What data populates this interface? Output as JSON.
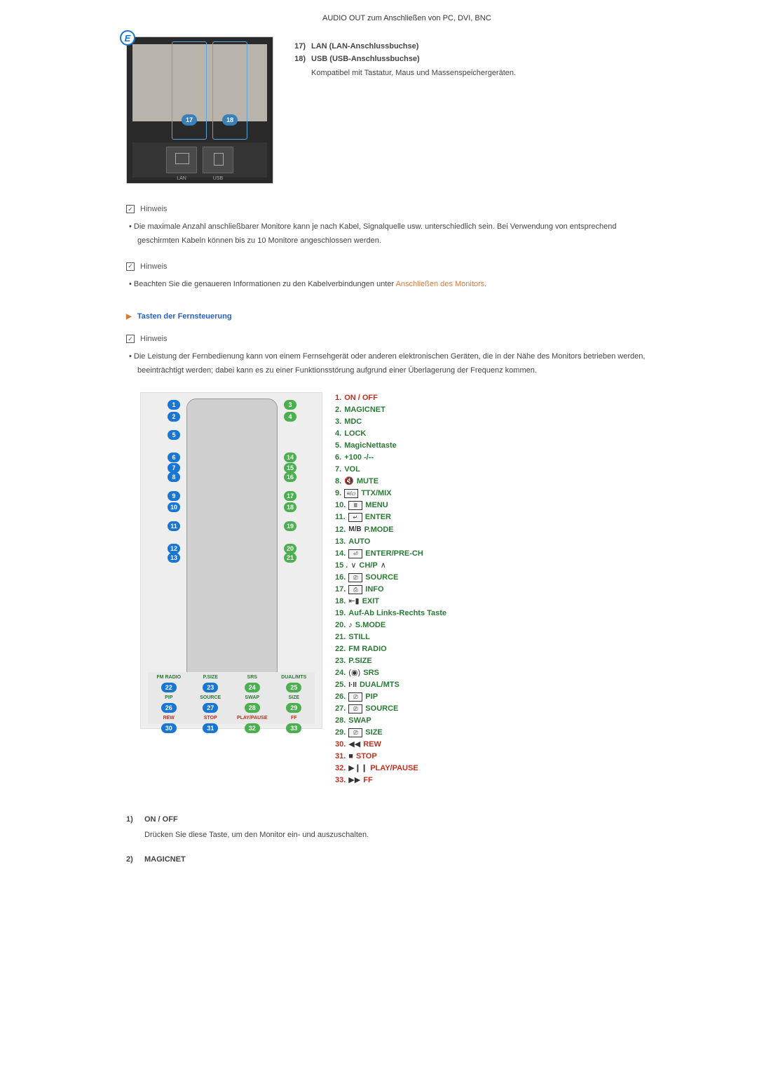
{
  "top": {
    "audio_out": "AUDIO OUT zum Anschließen von PC, DVI, BNC"
  },
  "ports": {
    "e_badge": "E",
    "items": [
      {
        "num": "17)",
        "title": "LAN (LAN-Anschlussbuchse)",
        "desc": ""
      },
      {
        "num": "18)",
        "title": "USB (USB-Anschlussbuchse)",
        "desc": "Kompatibel mit Tastatur, Maus und Massenspeichergeräten."
      }
    ],
    "labels": {
      "lan": "LAN",
      "usb": "USB",
      "n17": "17",
      "n18": "18"
    }
  },
  "notes": {
    "label": "Hinweis",
    "n1": "Die maximale Anzahl anschließbarer Monitore kann je nach Kabel, Signalquelle usw. unterschiedlich sein. Bei Verwendung von entsprechend geschirmten Kabeln können bis zu 10 Monitore angeschlossen werden.",
    "n2_pre": "Beachten Sie die genaueren Informationen zu den Kabelverbindungen unter ",
    "n2_link": "Anschließen des Monitors",
    "n2_post": ".",
    "n3": "Die Leistung der Fernbedienung kann von einem Fernsehgerät oder anderen elektronischen Geräten, die in der Nähe des Monitors betrieben werden, beeinträchtigt werden; dabei kann es zu einer Funktionsstörung aufgrund einer Überlagerung der Frequenz kommen."
  },
  "section": {
    "title": "Tasten der Fernsteuerung"
  },
  "remote_callouts": {
    "left": [
      {
        "n": "1",
        "t": 10
      },
      {
        "n": "2",
        "t": 27
      },
      {
        "n": "5",
        "t": 53
      },
      {
        "n": "6",
        "t": 85
      },
      {
        "n": "7",
        "t": 100
      },
      {
        "n": "8",
        "t": 113
      },
      {
        "n": "9",
        "t": 140
      },
      {
        "n": "10",
        "t": 156
      },
      {
        "n": "11",
        "t": 183
      },
      {
        "n": "12",
        "t": 215
      },
      {
        "n": "13",
        "t": 228
      }
    ],
    "right": [
      {
        "n": "3",
        "t": 10
      },
      {
        "n": "4",
        "t": 27
      },
      {
        "n": "14",
        "t": 85
      },
      {
        "n": "15",
        "t": 100
      },
      {
        "n": "16",
        "t": 113
      },
      {
        "n": "17",
        "t": 140
      },
      {
        "n": "18",
        "t": 156
      },
      {
        "n": "19",
        "t": 183
      },
      {
        "n": "20",
        "t": 215
      },
      {
        "n": "21",
        "t": 228
      }
    ]
  },
  "footer": {
    "row1_labels": [
      "FM RADIO",
      "P.SIZE",
      "SRS",
      "DUAL/MTS"
    ],
    "row1_nums": [
      {
        "n": "22",
        "c": "blue"
      },
      {
        "n": "23",
        "c": "blue"
      },
      {
        "n": "24",
        "c": "green"
      },
      {
        "n": "25",
        "c": "green"
      }
    ],
    "row2_labels": [
      "PIP",
      "SOURCE",
      "SWAP",
      "SIZE"
    ],
    "row2_nums": [
      {
        "n": "26",
        "c": "blue"
      },
      {
        "n": "27",
        "c": "blue"
      },
      {
        "n": "28",
        "c": "green"
      },
      {
        "n": "29",
        "c": "green"
      }
    ],
    "row3_labels": [
      "REW",
      "STOP",
      "PLAY/PAUSE",
      "FF"
    ],
    "row3_nums": [
      {
        "n": "30",
        "c": "blue"
      },
      {
        "n": "31",
        "c": "blue"
      },
      {
        "n": "32",
        "c": "green"
      },
      {
        "n": "33",
        "c": "green"
      }
    ]
  },
  "remote_list": [
    {
      "n": "1.",
      "label": "ON / OFF",
      "red": true
    },
    {
      "n": "2.",
      "label": "MAGICNET"
    },
    {
      "n": "3.",
      "label": "MDC"
    },
    {
      "n": "4.",
      "label": "LOCK"
    },
    {
      "n": "5.",
      "label": "MagicNettaste"
    },
    {
      "n": "6.",
      "label": "+100 -/--"
    },
    {
      "n": "7.",
      "label": "VOL"
    },
    {
      "n": "8.",
      "label": "MUTE",
      "icon_text": "🔇"
    },
    {
      "n": "9.",
      "label": "TTX/MIX",
      "box": "≡/▱"
    },
    {
      "n": "10.",
      "label": "MENU",
      "box": "Ⅲ"
    },
    {
      "n": "11.",
      "label": "ENTER",
      "box": "↵"
    },
    {
      "n": "12.",
      "label": "P.MODE",
      "plain": "M/B"
    },
    {
      "n": "13.",
      "label": "AUTO"
    },
    {
      "n": "14.",
      "label": "ENTER/PRE-CH",
      "box": "⏎"
    },
    {
      "n": "15 .",
      "label": "CH/P",
      "pre": "∨",
      "post": "∧"
    },
    {
      "n": "16.",
      "label": "SOURCE",
      "box": "⎚"
    },
    {
      "n": "17.",
      "label": "INFO",
      "box": "⎙"
    },
    {
      "n": "18.",
      "label": "EXIT",
      "icon_text": "⇤▮"
    },
    {
      "n": "19.",
      "label": "Auf-Ab Links-Rechts Taste"
    },
    {
      "n": "20.",
      "label": "S.MODE",
      "icon_text": "♪"
    },
    {
      "n": "21.",
      "label": "STILL"
    },
    {
      "n": "22.",
      "label": "FM RADIO"
    },
    {
      "n": "23.",
      "label": "P.SIZE"
    },
    {
      "n": "24.",
      "label": "SRS",
      "icon_text": "(◉)"
    },
    {
      "n": "25.",
      "label": "DUAL/MTS",
      "plain": "I·II"
    },
    {
      "n": "26.",
      "label": "PIP",
      "box": "⎚"
    },
    {
      "n": "27.",
      "label": "SOURCE",
      "box": "⎚"
    },
    {
      "n": "28.",
      "label": "SWAP"
    },
    {
      "n": "29.",
      "label": "SIZE",
      "box": "⎚"
    },
    {
      "n": "30.",
      "label": "REW",
      "icon_text": "◀◀",
      "red": true
    },
    {
      "n": "31.",
      "label": "STOP",
      "icon_text": "■",
      "red": true
    },
    {
      "n": "32.",
      "label": "PLAY/PAUSE",
      "icon_text": "▶❙❙",
      "red": true
    },
    {
      "n": "33.",
      "label": "FF",
      "icon_text": "▶▶",
      "red": true
    }
  ],
  "descriptions": [
    {
      "num": "1)",
      "title": "ON / OFF",
      "body": "Drücken Sie diese Taste, um den Monitor ein- und auszuschalten."
    },
    {
      "num": "2)",
      "title": "MAGICNET",
      "body": ""
    }
  ]
}
